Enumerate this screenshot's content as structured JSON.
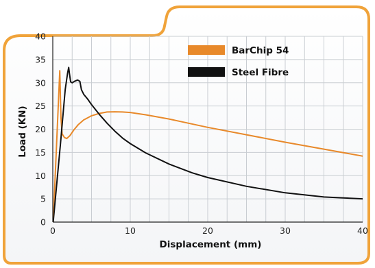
{
  "chart_data": {
    "type": "line",
    "title": "",
    "xlabel": "Displacement (mm)",
    "ylabel": "Load (KN)",
    "xlim": [
      0,
      40
    ],
    "ylim": [
      0,
      40
    ],
    "xticks": [
      0,
      10,
      20,
      30,
      40
    ],
    "yticks": [
      0,
      5,
      10,
      15,
      20,
      25,
      30,
      35,
      40
    ],
    "grid": true,
    "legend_position": "top-right",
    "colors": {
      "frame": "#f0a33a",
      "grid": "#c9cdd2",
      "axis": "#222222"
    },
    "series": [
      {
        "name": "BarChip 54",
        "color": "#e8892a",
        "x": [
          0.05,
          0.9,
          1.05,
          1.2,
          1.5,
          1.8,
          2.2,
          2.7,
          3.3,
          4.0,
          5.0,
          6.0,
          7.0,
          8.0,
          9.0,
          10.0,
          12.0,
          15.0,
          20.0,
          25.0,
          30.0,
          35.0,
          40.0
        ],
        "y": [
          0.0,
          32.6,
          22.5,
          19.0,
          18.2,
          18.0,
          18.6,
          19.8,
          21.0,
          22.0,
          22.9,
          23.4,
          23.7,
          23.75,
          23.7,
          23.6,
          23.1,
          22.2,
          20.4,
          18.8,
          17.2,
          15.7,
          14.2
        ]
      },
      {
        "name": "Steel Fibre",
        "color": "#111111",
        "x": [
          0.05,
          1.0,
          1.6,
          1.9,
          2.05,
          2.15,
          2.3,
          2.5,
          2.8,
          3.2,
          3.5,
          3.7,
          4.0,
          4.5,
          5.0,
          6.0,
          7.0,
          8.0,
          9.0,
          10.0,
          12.0,
          15.0,
          18.0,
          20.0,
          25.0,
          30.0,
          35.0,
          40.0
        ],
        "y": [
          0.0,
          17.0,
          28.5,
          32.0,
          33.3,
          32.0,
          30.2,
          30.0,
          30.3,
          30.6,
          30.3,
          28.5,
          27.5,
          26.5,
          25.3,
          23.2,
          21.3,
          19.6,
          18.1,
          16.9,
          14.9,
          12.5,
          10.6,
          9.6,
          7.7,
          6.3,
          5.4,
          5.0
        ]
      }
    ]
  }
}
